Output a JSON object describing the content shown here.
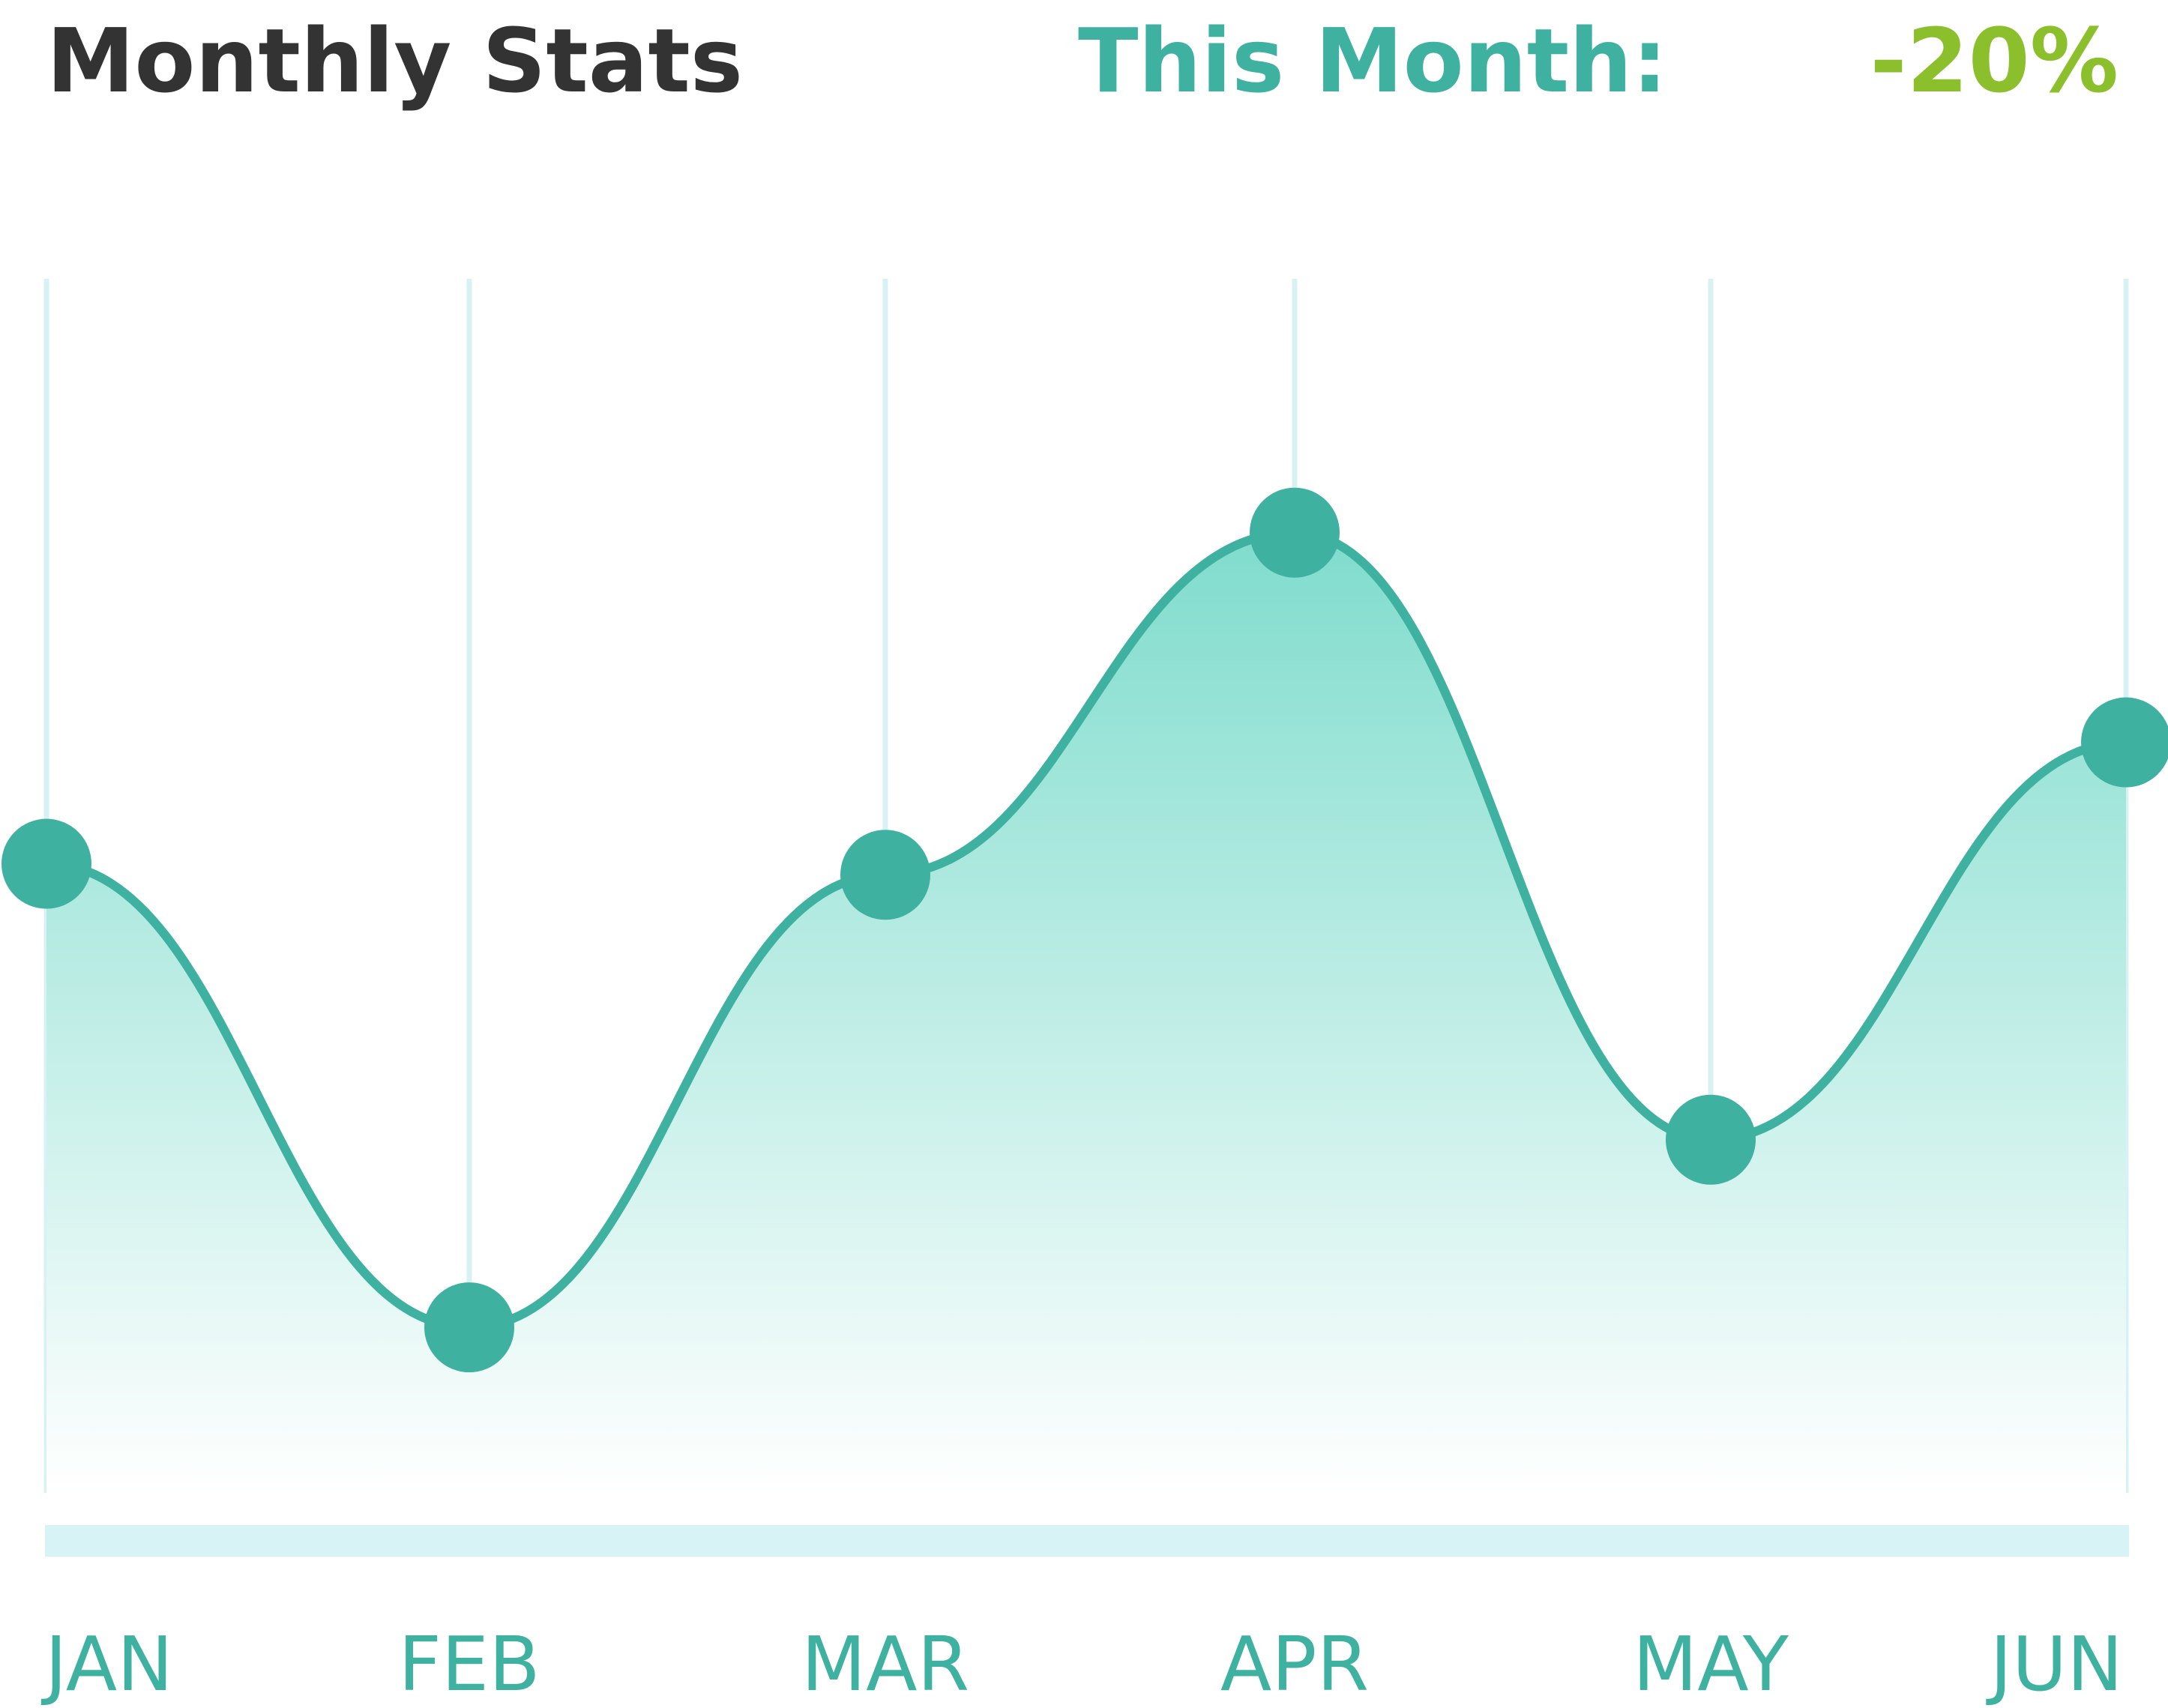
{
  "header": {
    "title": "Monthly Stats",
    "this_month_label": "This Month:",
    "this_month_value": "-20%"
  },
  "colors": {
    "title": "#333333",
    "accent": "#3eb1a0",
    "change_value": "#8cbf2c",
    "fill_top": "#7fdccd",
    "fill_bottom": "#ffffff",
    "grid": "#d8f1f3",
    "baseline_bar": "#d7f3f5"
  },
  "chart_data": {
    "type": "area",
    "categories": [
      "JAN",
      "FEB",
      "MAR",
      "APR",
      "MAY",
      "JUN"
    ],
    "values": [
      57,
      15,
      56,
      87,
      32,
      68
    ],
    "ylim": [
      0,
      110
    ],
    "grid": true,
    "markers": true,
    "curve": "smooth"
  }
}
